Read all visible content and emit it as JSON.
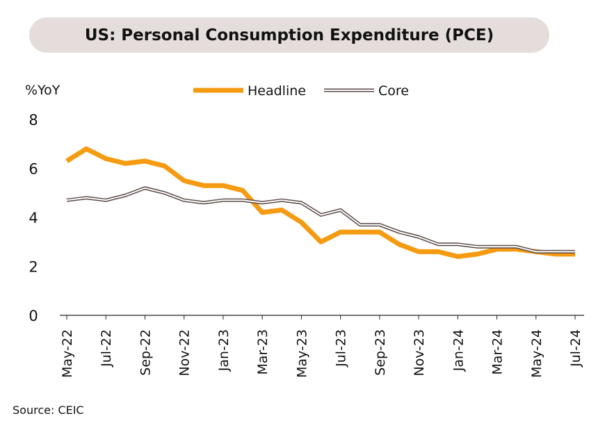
{
  "chart_data": {
    "type": "line",
    "title": "US: Personal Consumption Expenditure (PCE)",
    "ylabel": "%YoY",
    "xlabel": "",
    "ylim": [
      0,
      8
    ],
    "yticks": [
      0,
      2,
      4,
      6,
      8
    ],
    "grid": false,
    "legend_position": "top",
    "x": [
      "May-22",
      "Jun-22",
      "Jul-22",
      "Aug-22",
      "Sep-22",
      "Oct-22",
      "Nov-22",
      "Dec-22",
      "Jan-23",
      "Feb-23",
      "Mar-23",
      "Apr-23",
      "May-23",
      "Jun-23",
      "Jul-23",
      "Aug-23",
      "Sep-23",
      "Oct-23",
      "Nov-23",
      "Dec-23",
      "Jan-24",
      "Feb-24",
      "Mar-24",
      "Apr-24",
      "May-24",
      "Jun-24",
      "Jul-24"
    ],
    "x_tick_labels": [
      "May-22",
      "Jul-22",
      "Sep-22",
      "Nov-22",
      "Jan-23",
      "Mar-23",
      "May-23",
      "Jul-23",
      "Sep-23",
      "Nov-23",
      "Jan-24",
      "Mar-24",
      "May-24",
      "Jul-24"
    ],
    "series": [
      {
        "name": "Headline",
        "color": "#f59b12",
        "values": [
          6.3,
          6.8,
          6.4,
          6.2,
          6.3,
          6.1,
          5.5,
          5.3,
          5.3,
          5.1,
          4.2,
          4.3,
          3.8,
          3.0,
          3.4,
          3.4,
          3.4,
          2.9,
          2.6,
          2.6,
          2.4,
          2.5,
          2.7,
          2.7,
          2.6,
          2.5,
          2.5
        ]
      },
      {
        "name": "Core",
        "color": "#5a4a48",
        "values": [
          4.7,
          4.8,
          4.7,
          4.9,
          5.2,
          5.0,
          4.7,
          4.6,
          4.7,
          4.7,
          4.6,
          4.7,
          4.6,
          4.1,
          4.3,
          3.7,
          3.7,
          3.4,
          3.2,
          2.9,
          2.9,
          2.8,
          2.8,
          2.8,
          2.6,
          2.6,
          2.6
        ]
      }
    ],
    "source": "Source: CEIC"
  }
}
